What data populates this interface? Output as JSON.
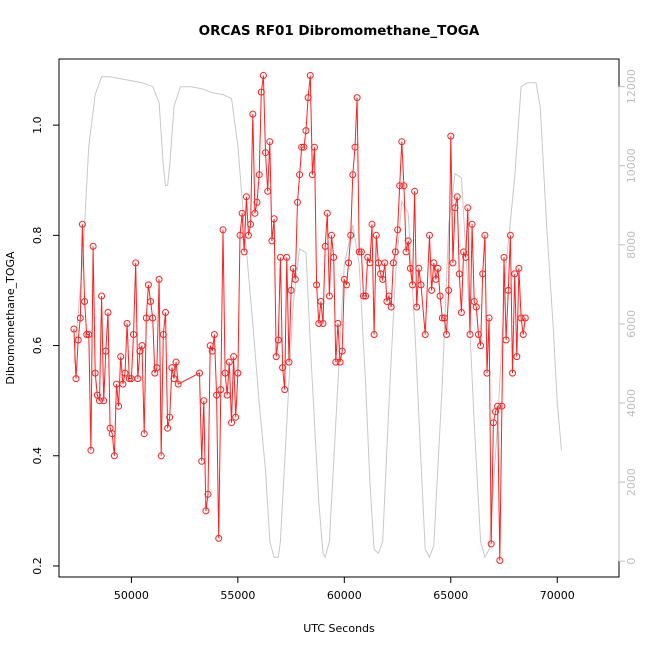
{
  "chart_data": {
    "type": "line",
    "title": "ORCAS RF01 Dibromomethane_TOGA",
    "xlabel": "UTC Seconds",
    "ylabel": "Dibromomethane_TOGA",
    "xlim": [
      46600,
      72900
    ],
    "ylim": [
      0.18,
      1.12
    ],
    "y2lim": [
      -400,
      12700
    ],
    "x_ticks": [
      50000,
      55000,
      60000,
      65000,
      70000
    ],
    "y_ticks": [
      0.2,
      0.4,
      0.6,
      0.8,
      1.0
    ],
    "y2_ticks": [
      0,
      2000,
      4000,
      6000,
      8000,
      10000,
      12000
    ],
    "x_tick_labels": [
      "50000",
      "55000",
      "60000",
      "65000",
      "70000"
    ],
    "y_tick_labels": [
      "0.2",
      "0.4",
      "0.6",
      "0.8",
      "1.0"
    ],
    "y2_tick_labels": [
      "0",
      "2000",
      "4000",
      "6000",
      "8000",
      "10000",
      "12000"
    ],
    "grid": false,
    "colors": {
      "series": "#ff2020",
      "secondary": "#c8c8c8",
      "axis2": "#bdbdbd"
    },
    "series": [
      {
        "values": [
          [
            47300,
            0.63
          ],
          [
            47400,
            0.54
          ],
          [
            47500,
            0.61
          ],
          [
            47600,
            0.65
          ],
          [
            47700,
            0.82
          ],
          [
            47800,
            0.68
          ],
          [
            47900,
            0.62
          ],
          [
            48000,
            0.62
          ],
          [
            48100,
            0.41
          ],
          [
            48200,
            0.78
          ],
          [
            48300,
            0.55
          ],
          [
            48400,
            0.51
          ],
          [
            48500,
            0.5
          ],
          [
            48600,
            0.69
          ],
          [
            48700,
            0.5
          ],
          [
            48800,
            0.59
          ],
          [
            48900,
            0.66
          ],
          [
            49000,
            0.45
          ],
          [
            49100,
            0.44
          ],
          [
            49200,
            0.4
          ],
          [
            49300,
            0.53
          ],
          [
            49400,
            0.49
          ],
          [
            49500,
            0.58
          ],
          [
            49600,
            0.53
          ],
          [
            49700,
            0.55
          ],
          [
            49800,
            0.64
          ],
          [
            49900,
            0.54
          ],
          [
            50000,
            0.54
          ],
          [
            50100,
            0.62
          ],
          [
            50200,
            0.75
          ],
          [
            50300,
            0.54
          ],
          [
            50400,
            0.59
          ],
          [
            50500,
            0.6
          ],
          [
            50600,
            0.44
          ],
          [
            50700,
            0.65
          ],
          [
            50800,
            0.71
          ],
          [
            50900,
            0.68
          ],
          [
            51000,
            0.65
          ],
          [
            51100,
            0.55
          ],
          [
            51200,
            0.56
          ],
          [
            51300,
            0.72
          ],
          [
            51400,
            0.4
          ],
          [
            51500,
            0.62
          ],
          [
            51600,
            0.66
          ],
          [
            51700,
            0.45
          ],
          [
            51800,
            0.47
          ],
          [
            51900,
            0.56
          ],
          [
            52000,
            0.54
          ],
          [
            52100,
            0.57
          ],
          [
            52200,
            0.53
          ],
          [
            53200,
            0.55
          ],
          [
            53300,
            0.39
          ],
          [
            53400,
            0.5
          ],
          [
            53500,
            0.3
          ],
          [
            53600,
            0.33
          ],
          [
            53700,
            0.6
          ],
          [
            53800,
            0.59
          ],
          [
            53900,
            0.62
          ],
          [
            54000,
            0.51
          ],
          [
            54100,
            0.25
          ],
          [
            54200,
            0.52
          ],
          [
            54300,
            0.81
          ],
          [
            54400,
            0.55
          ],
          [
            54500,
            0.51
          ],
          [
            54600,
            0.57
          ],
          [
            54700,
            0.46
          ],
          [
            54800,
            0.58
          ],
          [
            54900,
            0.47
          ],
          [
            55000,
            0.55
          ],
          [
            55100,
            0.8
          ],
          [
            55200,
            0.84
          ],
          [
            55300,
            0.77
          ],
          [
            55400,
            0.87
          ],
          [
            55500,
            0.8
          ],
          [
            55600,
            0.82
          ],
          [
            55700,
            1.02
          ],
          [
            55800,
            0.84
          ],
          [
            55900,
            0.86
          ],
          [
            56000,
            0.91
          ],
          [
            56100,
            1.06
          ],
          [
            56200,
            1.09
          ],
          [
            56300,
            0.95
          ],
          [
            56400,
            0.88
          ],
          [
            56500,
            0.97
          ],
          [
            56600,
            0.79
          ],
          [
            56700,
            0.83
          ],
          [
            56800,
            0.58
          ],
          [
            56900,
            0.61
          ],
          [
            57000,
            0.76
          ],
          [
            57100,
            0.56
          ],
          [
            57200,
            0.52
          ],
          [
            57300,
            0.76
          ],
          [
            57400,
            0.57
          ],
          [
            57500,
            0.7
          ],
          [
            57600,
            0.74
          ],
          [
            57700,
            0.72
          ],
          [
            57800,
            0.86
          ],
          [
            57900,
            0.91
          ],
          [
            58000,
            0.96
          ],
          [
            58100,
            0.96
          ],
          [
            58200,
            0.99
          ],
          [
            58300,
            1.05
          ],
          [
            58400,
            1.09
          ],
          [
            58500,
            0.91
          ],
          [
            58600,
            0.96
          ],
          [
            58700,
            0.71
          ],
          [
            58800,
            0.64
          ],
          [
            58900,
            0.68
          ],
          [
            59000,
            0.64
          ],
          [
            59100,
            0.78
          ],
          [
            59200,
            0.84
          ],
          [
            59300,
            0.69
          ],
          [
            59400,
            0.8
          ],
          [
            59500,
            0.76
          ],
          [
            59600,
            0.57
          ],
          [
            59700,
            0.64
          ],
          [
            59800,
            0.57
          ],
          [
            59900,
            0.59
          ],
          [
            60000,
            0.72
          ],
          [
            60100,
            0.71
          ],
          [
            60200,
            0.75
          ],
          [
            60300,
            0.8
          ],
          [
            60400,
            0.91
          ],
          [
            60500,
            0.96
          ],
          [
            60600,
            1.05
          ],
          [
            60700,
            0.77
          ],
          [
            60800,
            0.77
          ],
          [
            60900,
            0.69
          ],
          [
            61000,
            0.69
          ],
          [
            61100,
            0.76
          ],
          [
            61200,
            0.75
          ],
          [
            61300,
            0.82
          ],
          [
            61400,
            0.62
          ],
          [
            61500,
            0.8
          ],
          [
            61600,
            0.75
          ],
          [
            61700,
            0.73
          ],
          [
            61800,
            0.72
          ],
          [
            61900,
            0.75
          ],
          [
            62000,
            0.68
          ],
          [
            62100,
            0.69
          ],
          [
            62200,
            0.67
          ],
          [
            62300,
            0.75
          ],
          [
            62400,
            0.77
          ],
          [
            62500,
            0.81
          ],
          [
            62600,
            0.89
          ],
          [
            62700,
            0.97
          ],
          [
            62800,
            0.89
          ],
          [
            62900,
            0.77
          ],
          [
            63000,
            0.79
          ],
          [
            63100,
            0.74
          ],
          [
            63200,
            0.71
          ],
          [
            63300,
            0.88
          ],
          [
            63400,
            0.67
          ],
          [
            63500,
            0.74
          ],
          [
            63600,
            0.71
          ],
          [
            63800,
            0.62
          ],
          [
            64000,
            0.8
          ],
          [
            64100,
            0.7
          ],
          [
            64200,
            0.75
          ],
          [
            64300,
            0.72
          ],
          [
            64400,
            0.74
          ],
          [
            64500,
            0.69
          ],
          [
            64600,
            0.65
          ],
          [
            64700,
            0.65
          ],
          [
            64800,
            0.62
          ],
          [
            64900,
            0.7
          ],
          [
            65000,
            0.98
          ],
          [
            65100,
            0.75
          ],
          [
            65200,
            0.85
          ],
          [
            65300,
            0.87
          ],
          [
            65400,
            0.73
          ],
          [
            65500,
            0.66
          ],
          [
            65600,
            0.77
          ],
          [
            65700,
            0.76
          ],
          [
            65800,
            0.85
          ],
          [
            65900,
            0.62
          ],
          [
            66000,
            0.82
          ],
          [
            66100,
            0.68
          ],
          [
            66200,
            0.67
          ],
          [
            66300,
            0.62
          ],
          [
            66400,
            0.6
          ],
          [
            66500,
            0.73
          ],
          [
            66600,
            0.8
          ],
          [
            66700,
            0.55
          ],
          [
            66800,
            0.65
          ],
          [
            66900,
            0.24
          ],
          [
            67000,
            0.46
          ],
          [
            67100,
            0.48
          ],
          [
            67200,
            0.49
          ],
          [
            67300,
            0.21
          ],
          [
            67400,
            0.49
          ],
          [
            67500,
            0.76
          ],
          [
            67600,
            0.61
          ],
          [
            67700,
            0.7
          ],
          [
            67800,
            0.8
          ],
          [
            67900,
            0.55
          ],
          [
            68000,
            0.73
          ],
          [
            68100,
            0.58
          ],
          [
            68200,
            0.74
          ],
          [
            68300,
            0.65
          ],
          [
            68400,
            0.62
          ],
          [
            68500,
            0.65
          ]
        ]
      },
      {
        "axis": "right",
        "values": [
          [
            47300,
            5000
          ],
          [
            47700,
            7500
          ],
          [
            48000,
            10500
          ],
          [
            48300,
            11800
          ],
          [
            48600,
            12250
          ],
          [
            49000,
            12250
          ],
          [
            49500,
            12200
          ],
          [
            50000,
            12150
          ],
          [
            50500,
            12100
          ],
          [
            51000,
            12000
          ],
          [
            51300,
            11600
          ],
          [
            51500,
            10000
          ],
          [
            51600,
            9500
          ],
          [
            51700,
            9500
          ],
          [
            51800,
            10000
          ],
          [
            52000,
            11500
          ],
          [
            52300,
            12000
          ],
          [
            52800,
            12000
          ],
          [
            53300,
            11950
          ],
          [
            53800,
            11850
          ],
          [
            54300,
            11800
          ],
          [
            54700,
            11700
          ],
          [
            55000,
            10500
          ],
          [
            55300,
            8500
          ],
          [
            55700,
            6000
          ],
          [
            56000,
            4000
          ],
          [
            56300,
            2300
          ],
          [
            56500,
            500
          ],
          [
            56700,
            100
          ],
          [
            56900,
            100
          ],
          [
            57000,
            500
          ],
          [
            57300,
            3500
          ],
          [
            57600,
            6500
          ],
          [
            57900,
            7900
          ],
          [
            58200,
            7800
          ],
          [
            58400,
            5500
          ],
          [
            58600,
            3500
          ],
          [
            58800,
            1500
          ],
          [
            59000,
            200
          ],
          [
            59100,
            100
          ],
          [
            59300,
            500
          ],
          [
            59600,
            3500
          ],
          [
            60000,
            7500
          ],
          [
            60400,
            8500
          ],
          [
            60700,
            7500
          ],
          [
            61000,
            4500
          ],
          [
            61200,
            2000
          ],
          [
            61400,
            300
          ],
          [
            61600,
            200
          ],
          [
            61800,
            500
          ],
          [
            62100,
            4000
          ],
          [
            62400,
            7200
          ],
          [
            62700,
            9100
          ],
          [
            63000,
            8800
          ],
          [
            63300,
            6000
          ],
          [
            63600,
            2500
          ],
          [
            63800,
            300
          ],
          [
            64000,
            100
          ],
          [
            64200,
            400
          ],
          [
            64600,
            4500
          ],
          [
            64900,
            8500
          ],
          [
            65200,
            9800
          ],
          [
            65500,
            9700
          ],
          [
            65800,
            7000
          ],
          [
            66100,
            3500
          ],
          [
            66400,
            500
          ],
          [
            66600,
            100
          ],
          [
            66800,
            300
          ],
          [
            67200,
            3500
          ],
          [
            67600,
            7500
          ],
          [
            68000,
            9700
          ],
          [
            68300,
            12000
          ],
          [
            68600,
            12100
          ],
          [
            69000,
            12100
          ],
          [
            69200,
            11500
          ],
          [
            69500,
            8500
          ],
          [
            69800,
            6000
          ],
          [
            70000,
            4000
          ],
          [
            70200,
            2800
          ]
        ]
      }
    ]
  }
}
